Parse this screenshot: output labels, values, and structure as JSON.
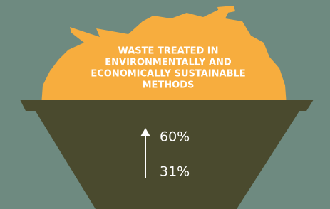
{
  "heading": [
    "WASTE TREATED IN",
    "ENVIRONMENTALLY AND",
    "ECONOMICALLY SUSTAINABLE",
    "METHODS"
  ],
  "figures": {
    "upper": "60%",
    "lower": "31%"
  }
}
